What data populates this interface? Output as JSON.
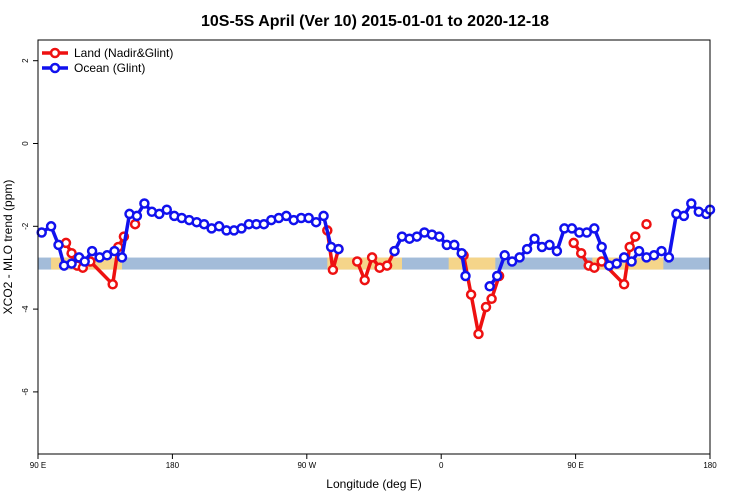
{
  "chart_data": {
    "type": "line",
    "title": "10S-5S April (Ver 10)   2015-01-01 to 2020-12-18",
    "xlabel": "Longitude (deg E)",
    "ylabel": "XCO2 - MLO trend (ppm)",
    "xlim": [
      90,
      450
    ],
    "ylim": [
      -7.5,
      2.5
    ],
    "x_ticks": [
      {
        "value": 90,
        "label": "90 E"
      },
      {
        "value": 162,
        "label": "180"
      },
      {
        "value": 234,
        "label": "90 W"
      },
      {
        "value": 306,
        "label": "0"
      },
      {
        "value": 378,
        "label": "90 E"
      },
      {
        "value": 450,
        "label": "180"
      }
    ],
    "y_ticks": [
      {
        "value": 2,
        "label": "2"
      },
      {
        "value": 0,
        "label": "0"
      },
      {
        "value": -2,
        "label": "-2"
      },
      {
        "value": -4,
        "label": "-4"
      },
      {
        "value": -6,
        "label": "-6"
      }
    ],
    "grid": false,
    "legend_position": "top-left",
    "band": {
      "y": -2.9,
      "color": "#a3bcd9"
    },
    "land_spans": [
      {
        "x0": 97,
        "x1": 135,
        "color": "#f5d58a"
      },
      {
        "x0": 245,
        "x1": 285,
        "color": "#f5d58a"
      },
      {
        "x0": 310,
        "x1": 335,
        "color": "#f5d58a"
      },
      {
        "x0": 387,
        "x1": 425,
        "color": "#f5d58a"
      }
    ],
    "series": [
      {
        "name": "Land (Nadir&Glint)",
        "color": "#ee1111",
        "segments": [
          [
            [
              105,
              -2.4
            ],
            [
              108,
              -2.65
            ],
            [
              111,
              -2.95
            ],
            [
              114,
              -3.0
            ],
            [
              118,
              -2.85
            ],
            [
              130,
              -3.4
            ],
            [
              133,
              -2.5
            ],
            [
              136,
              -2.25
            ]
          ],
          [
            [
              142,
              -1.95
            ]
          ],
          [
            [
              245,
              -2.1
            ],
            [
              248,
              -3.05
            ],
            [
              251,
              -2.55
            ]
          ],
          [
            [
              261,
              -2.85
            ],
            [
              265,
              -3.3
            ],
            [
              269,
              -2.75
            ],
            [
              273,
              -3.0
            ],
            [
              277,
              -2.95
            ],
            [
              281,
              -2.6
            ]
          ],
          [
            [
              318,
              -2.7
            ],
            [
              322,
              -3.65
            ],
            [
              326,
              -4.6
            ],
            [
              330,
              -3.95
            ],
            [
              333,
              -3.75
            ],
            [
              337,
              -3.2
            ]
          ],
          [
            [
              377,
              -2.4
            ],
            [
              381,
              -2.65
            ],
            [
              385,
              -2.95
            ],
            [
              388,
              -3.0
            ],
            [
              392,
              -2.85
            ],
            [
              404,
              -3.4
            ],
            [
              407,
              -2.5
            ],
            [
              410,
              -2.25
            ]
          ],
          [
            [
              416,
              -1.95
            ]
          ]
        ]
      },
      {
        "name": "Ocean (Glint)",
        "color": "#1111ee",
        "segments": [
          [
            [
              92,
              -2.15
            ],
            [
              97,
              -2.0
            ],
            [
              101,
              -2.45
            ],
            [
              104,
              -2.95
            ],
            [
              108,
              -2.9
            ],
            [
              112,
              -2.75
            ],
            [
              115,
              -2.85
            ],
            [
              119,
              -2.6
            ],
            [
              123,
              -2.75
            ],
            [
              127,
              -2.7
            ],
            [
              131,
              -2.6
            ],
            [
              135,
              -2.75
            ],
            [
              139,
              -1.7
            ],
            [
              143,
              -1.75
            ],
            [
              147,
              -1.45
            ],
            [
              151,
              -1.65
            ],
            [
              155,
              -1.7
            ],
            [
              159,
              -1.6
            ],
            [
              163,
              -1.75
            ],
            [
              167,
              -1.8
            ],
            [
              171,
              -1.85
            ],
            [
              175,
              -1.9
            ],
            [
              179,
              -1.95
            ],
            [
              183,
              -2.05
            ],
            [
              187,
              -2.0
            ],
            [
              191,
              -2.1
            ],
            [
              195,
              -2.1
            ],
            [
              199,
              -2.05
            ],
            [
              203,
              -1.95
            ],
            [
              207,
              -1.95
            ],
            [
              211,
              -1.95
            ],
            [
              215,
              -1.85
            ],
            [
              219,
              -1.8
            ],
            [
              223,
              -1.75
            ],
            [
              227,
              -1.85
            ],
            [
              231,
              -1.8
            ],
            [
              235,
              -1.8
            ],
            [
              239,
              -1.9
            ],
            [
              243,
              -1.75
            ],
            [
              247,
              -2.5
            ],
            [
              251,
              -2.55
            ]
          ],
          [
            [
              281,
              -2.6
            ],
            [
              285,
              -2.25
            ],
            [
              289,
              -2.3
            ],
            [
              293,
              -2.25
            ],
            [
              297,
              -2.15
            ],
            [
              301,
              -2.2
            ],
            [
              305,
              -2.25
            ],
            [
              309,
              -2.45
            ],
            [
              313,
              -2.45
            ],
            [
              317,
              -2.65
            ],
            [
              319,
              -3.2
            ]
          ],
          [
            [
              332,
              -3.45
            ],
            [
              336,
              -3.2
            ],
            [
              340,
              -2.7
            ],
            [
              344,
              -2.85
            ],
            [
              348,
              -2.75
            ],
            [
              352,
              -2.55
            ],
            [
              356,
              -2.3
            ],
            [
              360,
              -2.5
            ],
            [
              364,
              -2.45
            ],
            [
              368,
              -2.6
            ],
            [
              372,
              -2.05
            ],
            [
              376,
              -2.05
            ],
            [
              380,
              -2.15
            ],
            [
              384,
              -2.15
            ],
            [
              388,
              -2.05
            ],
            [
              392,
              -2.5
            ],
            [
              396,
              -2.95
            ],
            [
              400,
              -2.9
            ],
            [
              404,
              -2.75
            ],
            [
              408,
              -2.85
            ],
            [
              412,
              -2.6
            ],
            [
              416,
              -2.75
            ],
            [
              420,
              -2.7
            ],
            [
              424,
              -2.6
            ],
            [
              428,
              -2.75
            ],
            [
              432,
              -1.7
            ],
            [
              436,
              -1.75
            ],
            [
              440,
              -1.45
            ],
            [
              444,
              -1.65
            ],
            [
              448,
              -1.7
            ],
            [
              450,
              -1.6
            ]
          ]
        ]
      }
    ]
  }
}
